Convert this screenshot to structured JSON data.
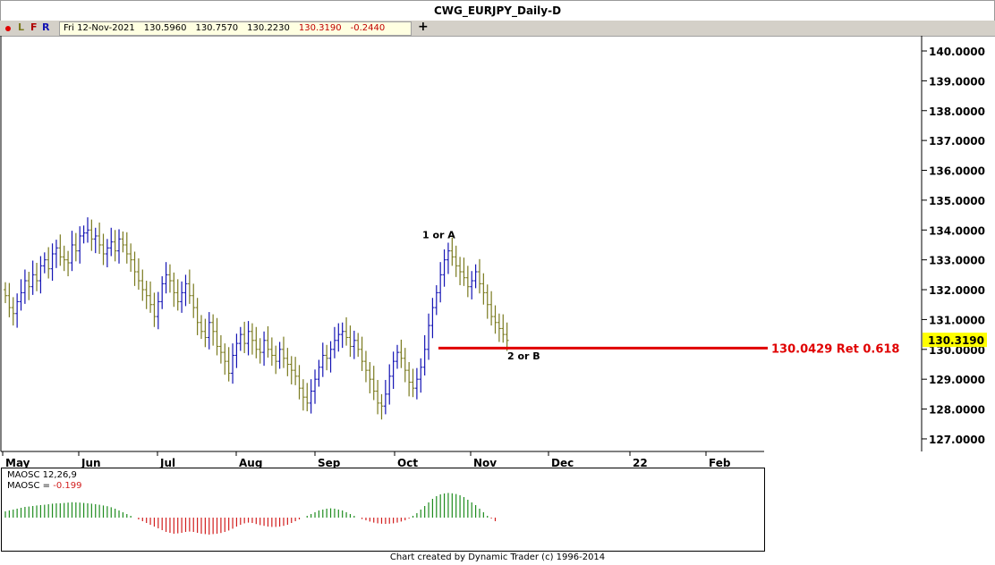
{
  "title": "CWG_EURJPY_Daily-D",
  "toolbar": {
    "buttons": [
      "L",
      "F",
      "R"
    ],
    "info": {
      "date": "Fri 12-Nov-2021",
      "open": "130.5960",
      "high": "130.7570",
      "low": "130.2230",
      "close": "130.3190",
      "change": "-0.2440"
    },
    "add_label": "+"
  },
  "colors": {
    "up_bar": "#1414b4",
    "down_bar": "#7a7a1e",
    "retracement_line": "#e00000",
    "price_marker": "#ffff00",
    "hist_positive": "#1e8c1e",
    "hist_negative": "#d21e1e"
  },
  "chart_data": [
    {
      "type": "ohlc",
      "title": "CWG_EURJPY_Daily-D",
      "x_tick_labels": [
        "May",
        "Jun",
        "Jul",
        "Aug",
        "Sep",
        "Oct",
        "Nov",
        "Dec",
        "22",
        "Feb"
      ],
      "y_tick_labels": [
        "140.0000",
        "139.0000",
        "138.0000",
        "137.0000",
        "136.0000",
        "135.0000",
        "134.0000",
        "133.0000",
        "132.0000",
        "131.0000",
        "130.0000",
        "129.0000",
        "128.0000",
        "127.0000"
      ],
      "ylim": [
        126.6,
        141.0
      ],
      "grid": false,
      "last_price_label": "130.3190",
      "last_price": 130.319,
      "series_close_approx": [
        131.8,
        131.4,
        131.2,
        131.6,
        131.9,
        132.3,
        132.1,
        132.5,
        132.3,
        132.8,
        133.0,
        132.7,
        133.2,
        133.4,
        133.1,
        133.0,
        132.9,
        133.5,
        133.3,
        133.8,
        133.9,
        134.0,
        133.7,
        133.8,
        133.5,
        133.2,
        133.4,
        133.6,
        133.3,
        133.7,
        133.5,
        133.2,
        133.0,
        132.6,
        132.3,
        132.0,
        131.8,
        131.5,
        131.1,
        131.6,
        132.2,
        132.5,
        132.3,
        131.9,
        131.6,
        131.9,
        132.2,
        131.8,
        131.4,
        130.9,
        130.6,
        130.4,
        130.9,
        130.6,
        130.1,
        129.9,
        129.6,
        129.2,
        129.8,
        130.2,
        130.5,
        130.2,
        130.6,
        130.3,
        130.0,
        129.9,
        130.3,
        130.0,
        129.8,
        129.6,
        130.0,
        129.7,
        129.5,
        129.3,
        129.1,
        128.7,
        128.4,
        128.2,
        128.6,
        129.0,
        129.4,
        129.8,
        129.7,
        130.0,
        130.3,
        130.5,
        130.6,
        130.4,
        130.1,
        130.3,
        130.0,
        129.6,
        129.3,
        129.0,
        128.6,
        128.2,
        128.1,
        128.5,
        129.1,
        129.6,
        129.9,
        129.7,
        129.3,
        128.9,
        128.7,
        129.0,
        129.4,
        130.0,
        130.8,
        131.4,
        131.9,
        132.5,
        133.0,
        133.3,
        133.1,
        132.8,
        132.6,
        132.4,
        132.1,
        132.3,
        132.6,
        132.2,
        131.9,
        131.5,
        131.1,
        130.9,
        130.7,
        130.5,
        130.3
      ],
      "annotations": [
        {
          "text": "1 or A",
          "x": "Oct",
          "y": 133.84
        },
        {
          "text": "2 or B",
          "x": "Nov",
          "y": 129.79
        },
        {
          "text": "130.0429 Ret 0.618",
          "y": 130.0429,
          "style": "horizontal-line"
        }
      ]
    },
    {
      "type": "histogram",
      "title": "MAOSC 12,26,9",
      "value_label": "MAOSC = ",
      "value": "-0.199",
      "series": [
        {
          "name": "MAOSC",
          "values": [
            0.35,
            0.4,
            0.45,
            0.5,
            0.55,
            0.6,
            0.62,
            0.65,
            0.68,
            0.7,
            0.72,
            0.75,
            0.78,
            0.8,
            0.8,
            0.82,
            0.84,
            0.86,
            0.85,
            0.84,
            0.82,
            0.8,
            0.78,
            0.75,
            0.72,
            0.68,
            0.64,
            0.58,
            0.5,
            0.4,
            0.3,
            0.2,
            0.1,
            0.0,
            -0.1,
            -0.2,
            -0.3,
            -0.4,
            -0.5,
            -0.6,
            -0.7,
            -0.8,
            -0.85,
            -0.9,
            -0.88,
            -0.85,
            -0.8,
            -0.78,
            -0.8,
            -0.85,
            -0.9,
            -0.92,
            -0.95,
            -0.92,
            -0.9,
            -0.86,
            -0.8,
            -0.72,
            -0.62,
            -0.5,
            -0.4,
            -0.32,
            -0.28,
            -0.3,
            -0.36,
            -0.42,
            -0.46,
            -0.5,
            -0.52,
            -0.52,
            -0.5,
            -0.46,
            -0.4,
            -0.3,
            -0.2,
            -0.1,
            0.0,
            0.1,
            0.2,
            0.3,
            0.4,
            0.45,
            0.5,
            0.52,
            0.5,
            0.45,
            0.4,
            0.3,
            0.2,
            0.1,
            0.0,
            -0.08,
            -0.15,
            -0.22,
            -0.28,
            -0.32,
            -0.34,
            -0.35,
            -0.34,
            -0.32,
            -0.28,
            -0.22,
            -0.15,
            -0.05,
            0.1,
            0.25,
            0.45,
            0.65,
            0.85,
            1.05,
            1.2,
            1.3,
            1.35,
            1.38,
            1.36,
            1.32,
            1.25,
            1.15,
            1.0,
            0.85,
            0.7,
            0.5,
            0.3,
            0.1,
            -0.05,
            -0.199
          ]
        }
      ]
    }
  ],
  "footer": "Chart created by Dynamic Trader  (c) 1996-2014"
}
